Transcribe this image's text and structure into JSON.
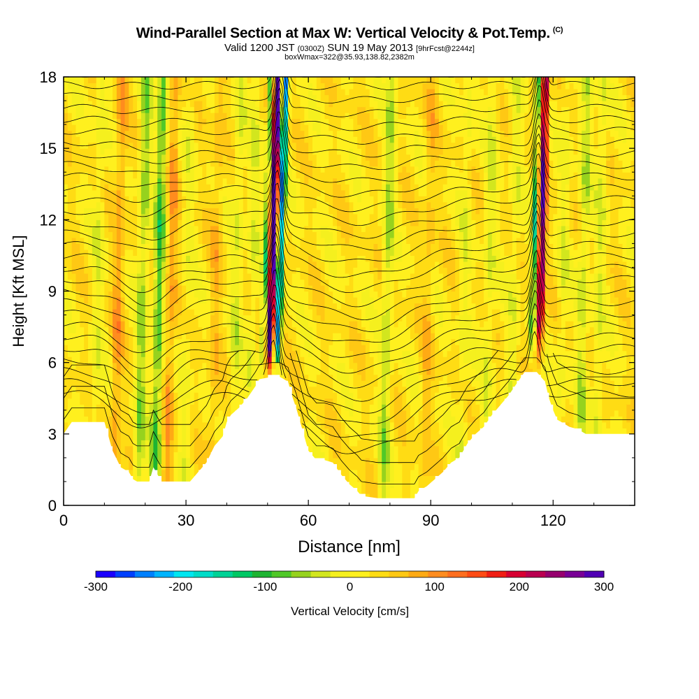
{
  "header": {
    "title": "Wind-Parallel Section at Max W: Vertical Velocity & Pot.Temp.",
    "copyright": "(C)",
    "subtitle_valid": "Valid 1200 JST",
    "subtitle_utc": "(0300Z)",
    "subtitle_date": "SUN 19 May 2013",
    "subtitle_fcst": "[9hrFcst@2244z]",
    "subtitle2": "boxWmax=322@35.93,138.82,2382m"
  },
  "chart_data": {
    "type": "heatmap",
    "xlabel": "Distance [nm]",
    "ylabel": "Height [Kft MSL]",
    "xlim": [
      0,
      140
    ],
    "ylim": [
      0,
      18
    ],
    "xticks": [
      0,
      30,
      60,
      90,
      120
    ],
    "yticks": [
      0,
      3,
      6,
      9,
      12,
      15,
      18
    ],
    "colorbar": {
      "label": "Vertical Velocity [cm/s]",
      "ticks": [
        -300,
        -200,
        -100,
        0,
        100,
        200,
        300
      ],
      "colors": [
        "#1a00ff",
        "#0040ff",
        "#0080ff",
        "#00b4ff",
        "#00e6f0",
        "#00dcc8",
        "#00d296",
        "#00c864",
        "#1eb432",
        "#50c828",
        "#96d21e",
        "#d2e61e",
        "#f5f01e",
        "#fff01e",
        "#ffdc14",
        "#ffc814",
        "#ffaa14",
        "#ff8c1e",
        "#ff6e1e",
        "#ff4b14",
        "#f01e14",
        "#d70032",
        "#b90050",
        "#96006e",
        "#780096",
        "#5000b4"
      ]
    },
    "features": [
      {
        "name": "updraft core",
        "x": 51.5,
        "w_max": 322
      },
      {
        "name": "downdraft core",
        "x": 53.5,
        "w_min": -250
      },
      {
        "name": "updraft",
        "x": 116.5,
        "w_max": 250
      },
      {
        "name": "downdraft",
        "x": 114.5,
        "w_min": -150
      }
    ],
    "terrain": [
      [
        0,
        3.0
      ],
      [
        2,
        3.5
      ],
      [
        10,
        3.5
      ],
      [
        12,
        2.3
      ],
      [
        14,
        1.6
      ],
      [
        16,
        1.4
      ],
      [
        17,
        1.1
      ],
      [
        18,
        1.0
      ],
      [
        21,
        1.0
      ],
      [
        22,
        1.6
      ],
      [
        24,
        1.0
      ],
      [
        31,
        1.0
      ],
      [
        33,
        1.4
      ],
      [
        35,
        1.8
      ],
      [
        37,
        2.5
      ],
      [
        39,
        2.9
      ],
      [
        40,
        3.5
      ],
      [
        41,
        3.8
      ],
      [
        43,
        4.1
      ],
      [
        45,
        4.5
      ],
      [
        47,
        5.0
      ],
      [
        48,
        5.3
      ],
      [
        51,
        5.4
      ],
      [
        53,
        5.4
      ],
      [
        55,
        5.2
      ],
      [
        56,
        4.6
      ],
      [
        57,
        4.1
      ],
      [
        58,
        3.5
      ],
      [
        59,
        2.9
      ],
      [
        60,
        2.3
      ],
      [
        62,
        1.9
      ],
      [
        64,
        1.9
      ],
      [
        66,
        1.8
      ],
      [
        68,
        1.3
      ],
      [
        70,
        0.9
      ],
      [
        72,
        0.6
      ],
      [
        73,
        0.4
      ],
      [
        77,
        0.3
      ],
      [
        86,
        0.3
      ],
      [
        87,
        0.6
      ],
      [
        89,
        0.8
      ],
      [
        91,
        1.1
      ],
      [
        93,
        1.4
      ],
      [
        95,
        1.8
      ],
      [
        97,
        2.0
      ],
      [
        99,
        2.6
      ],
      [
        101,
        3.0
      ],
      [
        103,
        3.3
      ],
      [
        105,
        3.8
      ],
      [
        107,
        4.2
      ],
      [
        109,
        4.6
      ],
      [
        111,
        5.1
      ],
      [
        113,
        5.6
      ],
      [
        116,
        5.6
      ],
      [
        118,
        5.2
      ],
      [
        119,
        4.5
      ],
      [
        120,
        4.0
      ],
      [
        121,
        3.6
      ],
      [
        122,
        3.5
      ],
      [
        124,
        3.3
      ],
      [
        126,
        3.2
      ],
      [
        128,
        3.0
      ],
      [
        131,
        3.0
      ],
      [
        136,
        3.0
      ],
      [
        140,
        3.0
      ]
    ],
    "theta_levels": [
      24,
      26,
      28,
      30,
      32,
      34,
      36,
      38,
      40,
      42,
      44,
      46,
      48,
      50,
      52,
      54,
      56,
      58,
      60,
      62,
      64,
      66,
      68,
      70,
      72,
      74,
      76,
      78,
      80
    ]
  }
}
